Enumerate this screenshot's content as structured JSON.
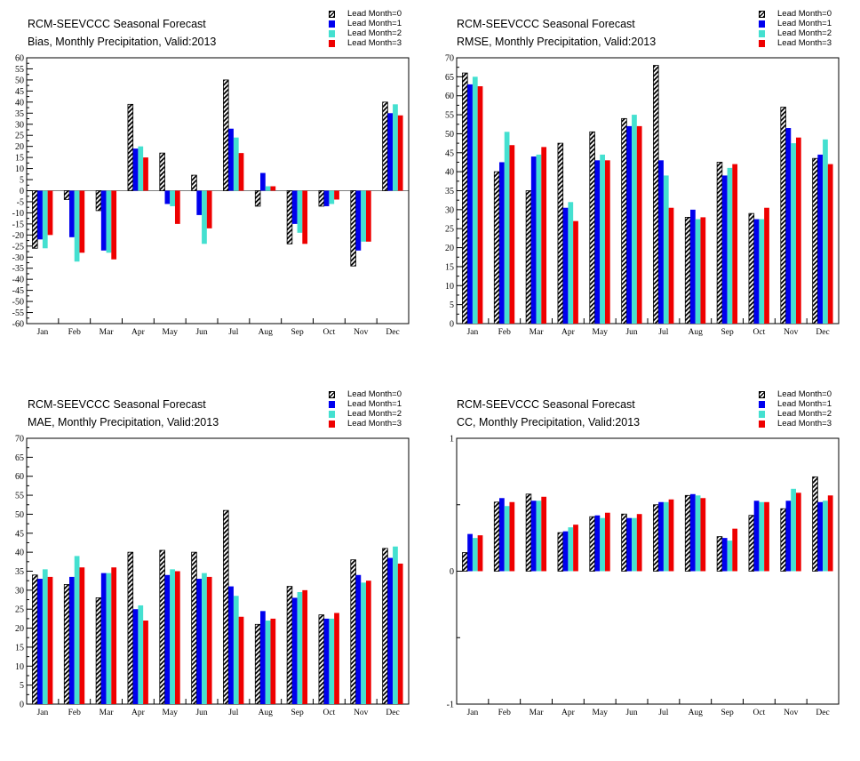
{
  "legend_labels": [
    "Lead Month=0",
    "Lead Month=1",
    "Lead Month=2",
    "Lead Month=3"
  ],
  "series_colors": [
    "hatched-black",
    "#0000ee",
    "#44e0d0",
    "#ee0000"
  ],
  "chart_data": [
    {
      "type": "bar",
      "title": "RCM-SEEVCCC Seasonal Forecast",
      "subtitle": "Bias, Monthly Precipitation, Valid:2013",
      "categories": [
        "Jan",
        "Feb",
        "Mar",
        "Apr",
        "May",
        "Jun",
        "Jul",
        "Aug",
        "Sep",
        "Oct",
        "Nov",
        "Dec"
      ],
      "ylim": [
        -60,
        60
      ],
      "yticks": [
        "60",
        "55",
        "50",
        "45",
        "40",
        "35",
        "30",
        "25",
        "20",
        "15",
        "10",
        "5",
        "0",
        "-5",
        "-10",
        "-15",
        "-20",
        "-25",
        "-30",
        "-35",
        "-40",
        "-45",
        "-50",
        "-55",
        "-60"
      ],
      "grid": false,
      "legend_position": "top-right",
      "series": [
        {
          "name": "Lead Month=0",
          "values": [
            -26,
            -4,
            -9,
            39,
            17,
            7,
            50,
            -7,
            -24,
            -7,
            -34,
            40
          ]
        },
        {
          "name": "Lead Month=1",
          "values": [
            -22,
            -21,
            -27,
            19,
            -6,
            -11,
            28,
            8,
            -15,
            -7,
            -27,
            35
          ]
        },
        {
          "name": "Lead Month=2",
          "values": [
            -26,
            -32,
            -28,
            20,
            -7,
            -24,
            24,
            2,
            -19,
            -6,
            -23,
            39
          ]
        },
        {
          "name": "Lead Month=3",
          "values": [
            -20,
            -28,
            -31,
            15,
            -15,
            -17,
            17,
            2,
            -24,
            -4,
            -23,
            34
          ]
        }
      ]
    },
    {
      "type": "bar",
      "title": "RCM-SEEVCCC Seasonal Forecast",
      "subtitle": "RMSE, Monthly Precipitation, Valid:2013",
      "categories": [
        "Jan",
        "Feb",
        "Mar",
        "Apr",
        "May",
        "Jun",
        "Jul",
        "Aug",
        "Sep",
        "Oct",
        "Nov",
        "Dec"
      ],
      "ylim": [
        0,
        70
      ],
      "yticks": [
        "70",
        "65",
        "60",
        "55",
        "50",
        "45",
        "40",
        "35",
        "30",
        "25",
        "20",
        "15",
        "10",
        "5",
        "0"
      ],
      "grid": false,
      "legend_position": "top-right",
      "series": [
        {
          "name": "Lead Month=0",
          "values": [
            66,
            40,
            35,
            47.5,
            50.5,
            54,
            68,
            28,
            42.5,
            29,
            57,
            43.5
          ]
        },
        {
          "name": "Lead Month=1",
          "values": [
            63,
            42.5,
            44,
            30.5,
            43,
            52,
            43,
            30,
            39,
            27.5,
            51.5,
            44.5
          ]
        },
        {
          "name": "Lead Month=2",
          "values": [
            65,
            50.5,
            44.5,
            32,
            44.5,
            55,
            39,
            27.5,
            41,
            27.5,
            47.5,
            48.5
          ]
        },
        {
          "name": "Lead Month=3",
          "values": [
            62.5,
            47,
            46.5,
            27,
            43,
            52,
            30.5,
            28,
            42,
            30.5,
            49,
            42
          ]
        }
      ]
    },
    {
      "type": "bar",
      "title": "RCM-SEEVCCC Seasonal Forecast",
      "subtitle": "MAE, Monthly Precipitation, Valid:2013",
      "categories": [
        "Jan",
        "Feb",
        "Mar",
        "Apr",
        "May",
        "Jun",
        "Jul",
        "Aug",
        "Sep",
        "Oct",
        "Nov",
        "Dec"
      ],
      "ylim": [
        0,
        70
      ],
      "yticks": [
        "70",
        "65",
        "60",
        "55",
        "50",
        "45",
        "40",
        "35",
        "30",
        "25",
        "20",
        "15",
        "10",
        "5",
        "0"
      ],
      "grid": false,
      "legend_position": "top-right",
      "series": [
        {
          "name": "Lead Month=0",
          "values": [
            34,
            31.5,
            28,
            40,
            40.5,
            40,
            51,
            21,
            31,
            23.5,
            38,
            41
          ]
        },
        {
          "name": "Lead Month=1",
          "values": [
            33,
            33.5,
            34.5,
            25,
            34,
            33,
            31,
            24.5,
            28,
            22.5,
            34,
            38.5
          ]
        },
        {
          "name": "Lead Month=2",
          "values": [
            35.5,
            39,
            34.5,
            26,
            35.5,
            34.5,
            28.5,
            22,
            29.5,
            22.5,
            32,
            41.5
          ]
        },
        {
          "name": "Lead Month=3",
          "values": [
            33.5,
            36,
            36,
            22,
            35,
            33.5,
            23,
            22.5,
            30,
            24,
            32.5,
            37
          ]
        }
      ]
    },
    {
      "type": "bar",
      "title": "RCM-SEEVCCC Seasonal Forecast",
      "subtitle": "CC, Monthly Precipitation, Valid:2013",
      "categories": [
        "Jan",
        "Feb",
        "Mar",
        "Apr",
        "May",
        "Jun",
        "Jul",
        "Aug",
        "Sep",
        "Oct",
        "Nov",
        "Dec"
      ],
      "ylim": [
        -1,
        1
      ],
      "yticks": [
        "1",
        "",
        "0",
        "",
        "-1"
      ],
      "grid": false,
      "legend_position": "top-right",
      "series": [
        {
          "name": "Lead Month=0",
          "values": [
            0.14,
            0.52,
            0.58,
            0.29,
            0.41,
            0.43,
            0.5,
            0.57,
            0.26,
            0.42,
            0.47,
            0.71
          ]
        },
        {
          "name": "Lead Month=1",
          "values": [
            0.28,
            0.55,
            0.53,
            0.3,
            0.42,
            0.4,
            0.52,
            0.58,
            0.25,
            0.53,
            0.53,
            0.52
          ]
        },
        {
          "name": "Lead Month=2",
          "values": [
            0.25,
            0.49,
            0.53,
            0.33,
            0.4,
            0.4,
            0.52,
            0.57,
            0.23,
            0.52,
            0.62,
            0.53
          ]
        },
        {
          "name": "Lead Month=3",
          "values": [
            0.27,
            0.52,
            0.56,
            0.35,
            0.44,
            0.43,
            0.54,
            0.55,
            0.32,
            0.52,
            0.59,
            0.57
          ]
        }
      ]
    }
  ]
}
